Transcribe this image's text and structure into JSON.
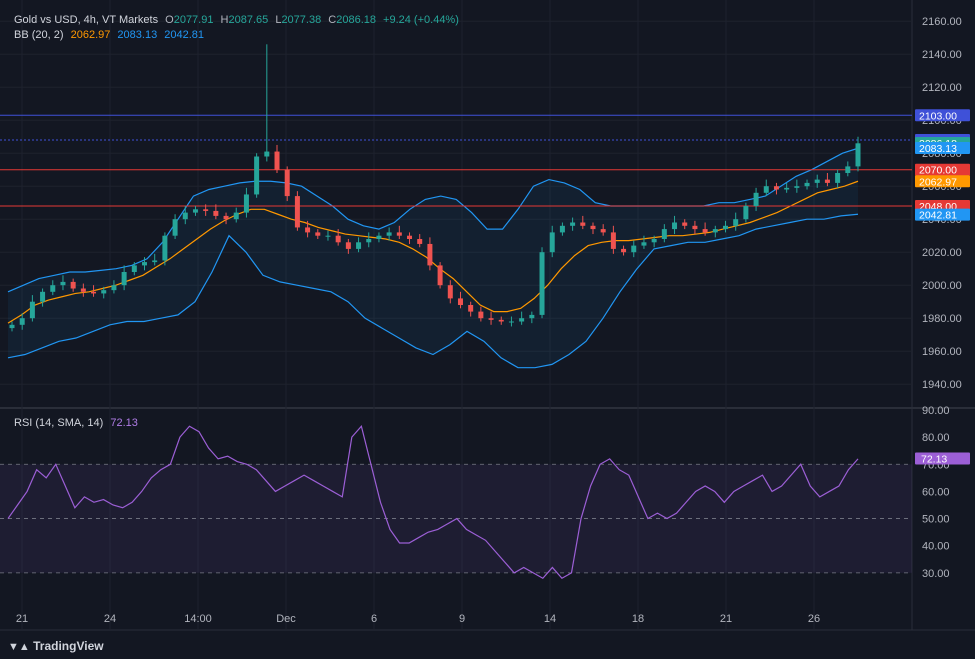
{
  "header": {
    "symbol": "Gold vs USD, 4h, VT Markets",
    "o_lbl": "O",
    "o": "2077.91",
    "h_lbl": "H",
    "h": "2087.65",
    "l_lbl": "L",
    "l": "2077.38",
    "c_lbl": "C",
    "c": "2086.18",
    "chg": "+9.24 (+0.44%)"
  },
  "bb": {
    "label": "BB (20, 2)",
    "basis": "2062.97",
    "upper": "2083.13",
    "lower": "2042.81"
  },
  "rsi": {
    "label": "RSI (14, SMA, 14)",
    "value": "72.13"
  },
  "logo": "TradingView",
  "colors": {
    "bg": "#131722",
    "up": "#26a69a",
    "down": "#ef5350",
    "basis": "#ff9800",
    "band": "#2962ff",
    "rsi": "#9c5fd6",
    "hline_blue": "#3f51d8",
    "hline_red": "#e53935"
  },
  "chart_data": [
    {
      "type": "candlestick",
      "title": "Gold vs USD, 4h, VT Markets",
      "x_tick_labels": [
        "21",
        "24",
        "14:00",
        "Dec",
        "6",
        "9",
        "14",
        "18",
        "21",
        "26"
      ],
      "y_tick_labels": [
        "1940.00",
        "1960.00",
        "1980.00",
        "2000.00",
        "2020.00",
        "2040.00",
        "2060.00",
        "2080.00",
        "2100.00",
        "2120.00",
        "2140.00",
        "2160.00"
      ],
      "ylim": [
        1928,
        2168
      ],
      "price_labels": [
        {
          "value": "2103.00",
          "kind": "hline",
          "color": "#3f51d8"
        },
        {
          "value": "2088.00",
          "kind": "hline",
          "color": "#3f51d8"
        },
        {
          "value": "2086.18",
          "kind": "last",
          "color": "#26a69a"
        },
        {
          "value": "2083.13",
          "kind": "upper",
          "color": "#2196f3"
        },
        {
          "value": "2070.00",
          "kind": "hline",
          "color": "#e53935"
        },
        {
          "value": "2062.97",
          "kind": "basis",
          "color": "#ff9800"
        },
        {
          "value": "2048.00",
          "kind": "hline",
          "color": "#e53935"
        },
        {
          "value": "2042.81",
          "kind": "lower",
          "color": "#2196f3"
        }
      ],
      "hlines": [
        {
          "value": 2103,
          "color": "#3f51d8",
          "style": "solid"
        },
        {
          "value": 2088,
          "color": "#3f51d8",
          "style": "dotted"
        },
        {
          "value": 2070,
          "color": "#e53935",
          "style": "solid"
        },
        {
          "value": 2048,
          "color": "#e53935",
          "style": "solid"
        }
      ],
      "close_path": [
        1976,
        1980,
        1990,
        1996,
        2000,
        2002,
        1998,
        1996,
        1995,
        1997,
        2000,
        2008,
        2012,
        2014,
        2015,
        2030,
        2040,
        2044,
        2046,
        2045,
        2042,
        2040,
        2044,
        2055,
        2078,
        2081,
        2070,
        2054,
        2035,
        2032,
        2030,
        2030,
        2026,
        2022,
        2026,
        2028,
        2030,
        2032,
        2030,
        2028,
        2025,
        2012,
        2000,
        1992,
        1988,
        1984,
        1980,
        1979,
        1978,
        1978,
        1980,
        1982,
        2020,
        2032,
        2036,
        2038,
        2036,
        2034,
        2032,
        2022,
        2020,
        2024,
        2026,
        2028,
        2034,
        2038,
        2036,
        2034,
        2032,
        2034,
        2036,
        2040,
        2048,
        2056,
        2060,
        2058,
        2059,
        2060,
        2062,
        2064,
        2062,
        2068,
        2072,
        2086
      ],
      "bb_basis": [
        1977,
        1982,
        1988,
        1991,
        1993,
        1995,
        1996,
        1998,
        2000,
        2003,
        2006,
        2011,
        2016,
        2022,
        2028,
        2034,
        2039,
        2043,
        2046,
        2046,
        2043,
        2040,
        2038,
        2035,
        2033,
        2031,
        2030,
        2029,
        2028,
        2026,
        2022,
        2017,
        2010,
        2004,
        1996,
        1988,
        1984,
        1984,
        1986,
        1992,
        2000,
        2010,
        2018,
        2024,
        2026,
        2027,
        2027,
        2028,
        2029,
        2030,
        2030,
        2031,
        2032,
        2034,
        2036,
        2038,
        2041,
        2044,
        2048,
        2052,
        2056,
        2058,
        2060,
        2063
      ],
      "bb_upper": [
        1996,
        2000,
        2004,
        2006,
        2008,
        2008,
        2009,
        2010,
        2012,
        2016,
        2026,
        2040,
        2054,
        2058,
        2060,
        2062,
        2063,
        2063,
        2062,
        2060,
        2054,
        2048,
        2040,
        2036,
        2034,
        2038,
        2046,
        2052,
        2054,
        2052,
        2044,
        2034,
        2034,
        2046,
        2060,
        2064,
        2062,
        2058,
        2050,
        2048,
        2048,
        2048,
        2048,
        2048,
        2048,
        2048,
        2050,
        2050,
        2052,
        2054,
        2060,
        2066,
        2070,
        2075,
        2080,
        2083
      ],
      "bb_lower": [
        1956,
        1958,
        1962,
        1966,
        1968,
        1972,
        1976,
        1978,
        1978,
        1980,
        1982,
        1990,
        2008,
        2030,
        2020,
        2006,
        2002,
        2000,
        1998,
        1996,
        1990,
        1980,
        1974,
        1968,
        1962,
        1958,
        1964,
        1972,
        1966,
        1956,
        1950,
        1950,
        1952,
        1958,
        1966,
        1980,
        1996,
        2010,
        2022,
        2024,
        2026,
        2026,
        2028,
        2030,
        2034,
        2036,
        2038,
        2040,
        2040,
        2042,
        2043
      ]
    },
    {
      "type": "line",
      "title": "RSI (14, SMA, 14)",
      "ylim": [
        20,
        90
      ],
      "y_tick_labels": [
        "30.00",
        "40.00",
        "50.00",
        "60.00",
        "70.00",
        "80.00",
        "90.00"
      ],
      "bands": [
        30,
        50,
        70
      ],
      "values": [
        50,
        55,
        60,
        68,
        65,
        70,
        62,
        54,
        58,
        56,
        57,
        55,
        54,
        56,
        60,
        65,
        68,
        70,
        80,
        84,
        82,
        76,
        72,
        73,
        71,
        70,
        68,
        64,
        60,
        62,
        64,
        66,
        64,
        62,
        60,
        58,
        80,
        84,
        70,
        56,
        46,
        41,
        41,
        43,
        45,
        46,
        48,
        50,
        46,
        44,
        42,
        38,
        34,
        30,
        32,
        30,
        28,
        32,
        28,
        30,
        50,
        62,
        70,
        72,
        68,
        66,
        58,
        50,
        52,
        50,
        52,
        56,
        60,
        62,
        60,
        56,
        60,
        62,
        64,
        66,
        60,
        62,
        66,
        70,
        62,
        58,
        60,
        62,
        68,
        72
      ]
    }
  ]
}
